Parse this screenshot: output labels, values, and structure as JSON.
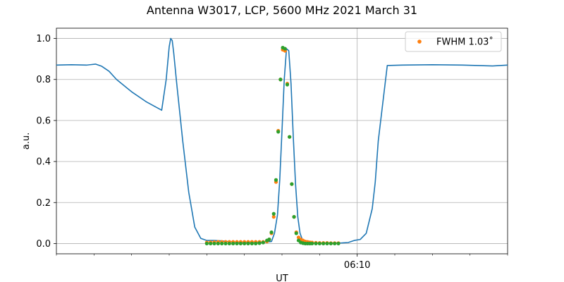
{
  "chart_data": {
    "type": "line",
    "title": "Antenna W3017, LCP, 5600 MHz 2021 March 31",
    "xlabel": "UT",
    "ylabel": "a.u.",
    "ylim": [
      -0.05,
      1.05
    ],
    "yticks": [
      0.0,
      0.2,
      0.4,
      0.6,
      0.8,
      1.0
    ],
    "ytick_labels": [
      "0.0",
      "0.2",
      "0.4",
      "0.6",
      "0.8",
      "1.0"
    ],
    "xlim": [
      0,
      30
    ],
    "major_xticks": [
      {
        "x": 20,
        "label": "06:10"
      }
    ],
    "minor_xticks": [
      0,
      2.5,
      5,
      7.5,
      10,
      12.5,
      15,
      17.5,
      22.5,
      25,
      27.5,
      30
    ],
    "x_grid_major": [
      20
    ],
    "grid": true,
    "legend_position": "top-right",
    "colors": {
      "signal": "#1f77b4",
      "fwhm": "#ff7f0e",
      "fit": "#2ca02c"
    },
    "series": [
      {
        "role": "signal",
        "style": "line",
        "x": [
          0,
          1,
          2,
          2.6,
          3,
          3.5,
          4,
          5,
          6,
          7,
          7.3,
          7.5,
          7.6,
          7.7,
          7.8,
          8,
          8.4,
          8.8,
          9.2,
          9.6,
          10,
          10.5,
          11,
          12,
          13,
          13.5,
          14.3,
          14.5,
          14.7,
          14.85,
          15.0,
          15.15,
          15.3,
          15.45,
          15.6,
          15.75,
          15.9,
          16.05,
          16.2,
          16.35,
          16.5,
          16.7,
          17,
          18,
          19,
          19.4,
          19.8,
          20.2,
          20.6,
          21,
          21.2,
          21.4,
          22,
          23,
          25,
          27,
          28,
          29,
          30
        ],
        "y": [
          0.87,
          0.872,
          0.87,
          0.875,
          0.865,
          0.84,
          0.8,
          0.74,
          0.69,
          0.65,
          0.8,
          0.96,
          1.0,
          0.99,
          0.93,
          0.78,
          0.5,
          0.25,
          0.08,
          0.025,
          0.015,
          0.015,
          0.013,
          0.005,
          0.005,
          0.005,
          0.01,
          0.05,
          0.14,
          0.31,
          0.55,
          0.8,
          0.95,
          0.94,
          0.78,
          0.52,
          0.29,
          0.13,
          0.05,
          0.02,
          0.01,
          0.005,
          0.002,
          0.002,
          0.003,
          0.005,
          0.015,
          0.02,
          0.05,
          0.17,
          0.3,
          0.5,
          0.868,
          0.87,
          0.872,
          0.87,
          0.868,
          0.866,
          0.87
        ]
      },
      {
        "role": "fwhm",
        "name": "FWHM 1.03$^\\circ$",
        "legend_label": "FWHM 1.03˚",
        "style": "markers",
        "x": [
          10.0,
          10.25,
          10.5,
          10.75,
          11.0,
          11.25,
          11.5,
          11.75,
          12.0,
          12.25,
          12.5,
          12.75,
          13.0,
          13.25,
          13.5,
          13.75,
          14.0,
          14.15,
          14.3,
          14.45,
          14.6,
          14.75,
          14.9,
          15.05,
          15.2,
          15.35,
          15.5,
          15.65,
          15.8,
          15.95,
          16.1,
          16.25,
          16.4,
          16.55,
          16.7,
          16.85,
          17.0,
          17.25,
          17.5,
          17.75,
          18.0,
          18.25,
          18.5,
          18.75
        ],
        "y": [
          0.005,
          0.006,
          0.007,
          0.008,
          0.008,
          0.008,
          0.008,
          0.008,
          0.008,
          0.008,
          0.008,
          0.008,
          0.008,
          0.008,
          0.008,
          0.008,
          0.01,
          0.02,
          0.05,
          0.13,
          0.3,
          0.55,
          0.8,
          0.945,
          0.94,
          0.78,
          0.52,
          0.29,
          0.13,
          0.055,
          0.03,
          0.02,
          0.015,
          0.01,
          0.008,
          0.006,
          0.005,
          0.004,
          0.003,
          0.003,
          0.003,
          0.002,
          0.002,
          0.002
        ]
      },
      {
        "role": "fit",
        "style": "markers",
        "x": [
          10.0,
          10.25,
          10.5,
          10.75,
          11.0,
          11.25,
          11.5,
          11.75,
          12.0,
          12.25,
          12.5,
          12.75,
          13.0,
          13.25,
          13.5,
          13.75,
          14.0,
          14.15,
          14.3,
          14.45,
          14.6,
          14.75,
          14.9,
          15.05,
          15.2,
          15.35,
          15.5,
          15.65,
          15.8,
          15.95,
          16.1,
          16.25,
          16.4,
          16.55,
          16.7,
          16.85,
          17.0,
          17.25,
          17.5,
          17.75,
          18.0,
          18.25,
          18.5,
          18.75
        ],
        "y": [
          0.0,
          0.0,
          0.0,
          0.0,
          0.0,
          0.0,
          0.0,
          0.0,
          0.0,
          0.0,
          0.0,
          0.0,
          0.0,
          0.0,
          0.002,
          0.005,
          0.015,
          0.02,
          0.055,
          0.145,
          0.31,
          0.545,
          0.8,
          0.955,
          0.95,
          0.775,
          0.52,
          0.29,
          0.13,
          0.05,
          0.015,
          0.005,
          0.002,
          0.0,
          0.0,
          0.0,
          0.0,
          0.0,
          0.0,
          0.0,
          0.0,
          0.0,
          0.0,
          0.0
        ]
      }
    ]
  }
}
